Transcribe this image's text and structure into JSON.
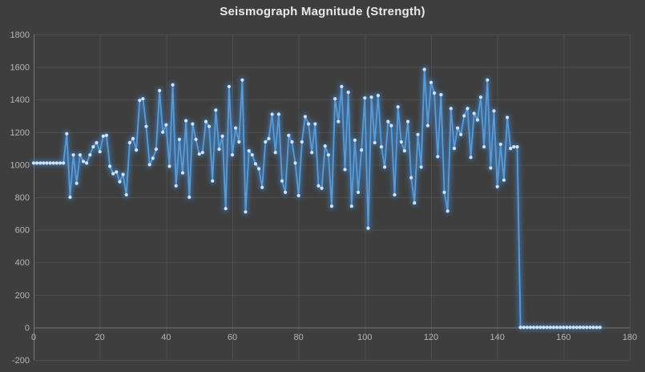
{
  "chart_data": {
    "type": "line",
    "title": "Seismograph Magnitude (Strength)",
    "xlabel": "",
    "ylabel": "",
    "xlim": [
      0,
      180
    ],
    "ylim": [
      -200,
      1800
    ],
    "x_ticks": [
      0,
      20,
      40,
      60,
      80,
      100,
      120,
      140,
      160,
      180
    ],
    "y_ticks": [
      -200,
      0,
      200,
      400,
      600,
      800,
      1000,
      1200,
      1400,
      1600,
      1800
    ],
    "grid": true,
    "legend": "none",
    "x_is_index": true,
    "n_points": 172,
    "values": [
      1010,
      1010,
      1010,
      1010,
      1010,
      1010,
      1010,
      1010,
      1010,
      1010,
      1190,
      800,
      1060,
      885,
      1060,
      1020,
      1010,
      1060,
      1110,
      1135,
      1080,
      1175,
      1180,
      990,
      945,
      955,
      895,
      940,
      815,
      1135,
      1160,
      1090,
      1395,
      1405,
      1235,
      1000,
      1040,
      1095,
      1455,
      1200,
      1245,
      990,
      1490,
      870,
      1155,
      950,
      1270,
      800,
      1250,
      1155,
      1065,
      1075,
      1265,
      1235,
      900,
      1335,
      1095,
      1175,
      730,
      1480,
      1060,
      1225,
      1140,
      1520,
      710,
      1085,
      1060,
      1005,
      975,
      860,
      1140,
      1160,
      1310,
      1075,
      1310,
      900,
      830,
      1180,
      1140,
      1010,
      810,
      1140,
      1295,
      1250,
      1075,
      1250,
      870,
      855,
      1115,
      1060,
      745,
      1405,
      1265,
      1480,
      970,
      1445,
      745,
      1150,
      830,
      1090,
      1410,
      610,
      1415,
      1135,
      1425,
      1110,
      985,
      1265,
      1240,
      815,
      1355,
      1140,
      1085,
      1265,
      920,
      765,
      1185,
      985,
      1585,
      1240,
      1505,
      1440,
      1050,
      1430,
      830,
      715,
      1345,
      1100,
      1225,
      1185,
      1300,
      1345,
      1045,
      1315,
      1275,
      1415,
      1110,
      1520,
      980,
      1330,
      865,
      1125,
      905,
      1290,
      1100,
      1110,
      1110,
      0,
      0,
      0,
      0,
      0,
      0,
      0,
      0,
      0,
      0,
      0,
      0,
      0,
      0,
      0,
      0,
      0,
      0,
      0,
      0,
      0,
      0,
      0,
      0,
      0
    ]
  },
  "colors": {
    "background": "#3e3e3e",
    "gridline": "#4e4e4e",
    "axis_line": "#757575",
    "tick_label": "#b5b5b5",
    "title": "#e8e8e8",
    "series_line": "#5b9bd5",
    "series_marker": "#cfe4f7",
    "series_glow": "#3f87d2"
  }
}
